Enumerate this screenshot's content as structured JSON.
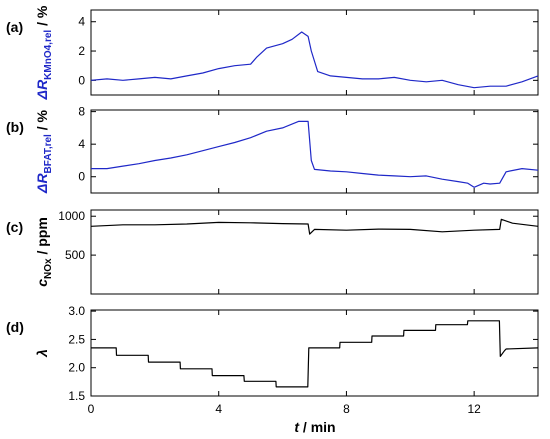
{
  "figure": {
    "xlabel_italic": "t",
    "xlabel_rest": " / min",
    "xticks": [
      0,
      4,
      8,
      12
    ],
    "xlim": [
      0,
      14
    ]
  },
  "chart_data": [
    {
      "type": "line",
      "panel_label": "(a)",
      "ylabel_main": "ΔR",
      "ylabel_sub": "KMnO4,rel",
      "ylabel_unit": " / %",
      "label_color": "#1f28c8",
      "ylim": [
        -1,
        4.8
      ],
      "yticks": [
        0,
        2,
        4
      ],
      "series": [
        {
          "color": "#1f28c8",
          "x": [
            0,
            0.5,
            1,
            1.5,
            2,
            2.5,
            3,
            3.5,
            4,
            4.5,
            5,
            5.2,
            5.5,
            6,
            6.3,
            6.6,
            6.8,
            6.9,
            7.1,
            7.5,
            8,
            8.5,
            9,
            9.5,
            10,
            10.5,
            11,
            11.5,
            12,
            12.5,
            13,
            13.5,
            14
          ],
          "y": [
            0,
            0.1,
            0,
            0.1,
            0.2,
            0.1,
            0.3,
            0.5,
            0.8,
            1.0,
            1.1,
            1.6,
            2.2,
            2.5,
            2.8,
            3.3,
            3.0,
            2.0,
            0.6,
            0.3,
            0.2,
            0.1,
            0.1,
            0.2,
            0,
            -0.1,
            0,
            -0.3,
            -0.5,
            -0.4,
            -0.4,
            -0.1,
            0.3
          ]
        }
      ]
    },
    {
      "type": "line",
      "panel_label": "(b)",
      "ylabel_main": "ΔR",
      "ylabel_sub": "BFAT,rel",
      "ylabel_unit": " / %",
      "label_color": "#1f28c8",
      "ylim": [
        -2,
        8.2
      ],
      "yticks": [
        0,
        4,
        8
      ],
      "series": [
        {
          "color": "#1f28c8",
          "x": [
            0,
            0.5,
            1,
            1.5,
            2,
            2.5,
            3,
            3.5,
            4,
            4.5,
            5,
            5.5,
            6,
            6.5,
            6.8,
            6.9,
            7.0,
            7.5,
            8,
            8.5,
            9,
            9.5,
            10,
            10.5,
            11,
            11.5,
            11.8,
            12,
            12.3,
            12.5,
            12.8,
            13,
            13.5,
            14
          ],
          "y": [
            1.0,
            1.0,
            1.3,
            1.6,
            2.0,
            2.3,
            2.7,
            3.2,
            3.7,
            4.2,
            4.8,
            5.6,
            6.0,
            6.8,
            6.8,
            2.0,
            0.9,
            0.7,
            0.6,
            0.4,
            0.2,
            0.1,
            0,
            0.1,
            -0.3,
            -0.6,
            -0.8,
            -1.3,
            -0.8,
            -0.9,
            -0.8,
            0.6,
            1.0,
            0.8
          ]
        }
      ]
    },
    {
      "type": "line",
      "panel_label": "(c)",
      "ylabel_main": "c",
      "ylabel_sub": "NOx",
      "ylabel_unit": " / ppm",
      "label_color": "#000000",
      "ylim": [
        0,
        1080
      ],
      "yticks": [
        500,
        1000
      ],
      "series": [
        {
          "color": "#000000",
          "x": [
            0,
            1,
            2,
            3,
            4,
            5,
            6,
            6.8,
            6.85,
            7,
            8,
            9,
            10,
            11,
            12,
            12.8,
            12.85,
            13.2,
            14
          ],
          "y": [
            870,
            890,
            890,
            900,
            920,
            915,
            905,
            900,
            770,
            830,
            820,
            835,
            830,
            800,
            820,
            830,
            960,
            910,
            870
          ]
        }
      ]
    },
    {
      "type": "line",
      "panel_label": "(d)",
      "ylabel_main": "λ",
      "ylabel_sub": "",
      "ylabel_unit": "",
      "label_color": "#000000",
      "ylim": [
        1.5,
        3.02
      ],
      "yticks": [
        1.5,
        2.0,
        2.5,
        3.0
      ],
      "series": [
        {
          "color": "#000000",
          "x": [
            0,
            0.79,
            0.8,
            1.79,
            1.8,
            2.79,
            2.8,
            3.79,
            3.8,
            4.79,
            4.8,
            5.79,
            5.8,
            6.79,
            6.82,
            7.79,
            7.8,
            8.79,
            8.8,
            9.79,
            9.8,
            10.79,
            10.8,
            11.79,
            11.8,
            12.79,
            12.82,
            12.95,
            13.0,
            14
          ],
          "y": [
            2.35,
            2.35,
            2.22,
            2.22,
            2.1,
            2.1,
            1.98,
            1.98,
            1.86,
            1.86,
            1.76,
            1.76,
            1.66,
            1.66,
            2.35,
            2.35,
            2.45,
            2.45,
            2.56,
            2.56,
            2.66,
            2.66,
            2.76,
            2.76,
            2.83,
            2.83,
            2.2,
            2.3,
            2.33,
            2.35
          ]
        }
      ]
    }
  ]
}
